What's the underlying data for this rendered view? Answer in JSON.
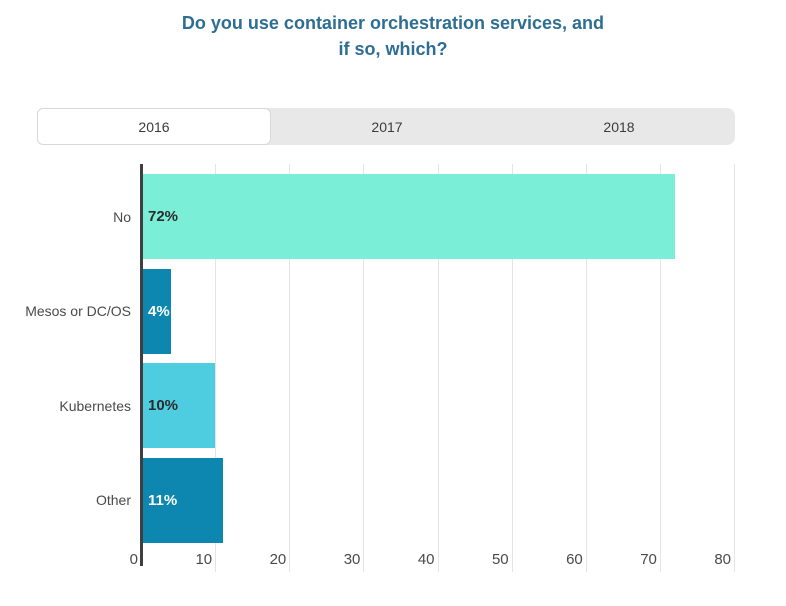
{
  "title": {
    "text": "Do you use container orchestration services, and\nif so, which?",
    "color": "#2e6e93"
  },
  "tabs": {
    "selected": "2016",
    "bar_background": "#e8e8e8",
    "active_background": "#ffffff",
    "items": [
      {
        "label": "2016",
        "active": true
      },
      {
        "label": "2017",
        "active": false
      },
      {
        "label": "2018",
        "active": false
      }
    ]
  },
  "chart_data": {
    "type": "bar",
    "orientation": "horizontal",
    "title": "Do you use container orchestration services, and if so, which?",
    "categories": [
      "No",
      "Mesos or DC/OS",
      "Kubernetes",
      "Other"
    ],
    "values": [
      72,
      4,
      10,
      11
    ],
    "value_labels": [
      "72%",
      "4%",
      "10%",
      "11%"
    ],
    "bar_colors": [
      "#7beed8",
      "#0e87b0",
      "#4fcde0",
      "#0e87b0"
    ],
    "value_label_colors": [
      "#2b2b2b",
      "#ffffff",
      "#2b2b2b",
      "#ffffff"
    ],
    "xlim": [
      0,
      80
    ],
    "xticks": [
      0,
      10,
      20,
      30,
      40,
      50,
      60,
      70,
      80
    ],
    "grid": true,
    "legend": "none",
    "axis_color": "#3f3f3f",
    "gridline_color": "#e4e4e4"
  }
}
